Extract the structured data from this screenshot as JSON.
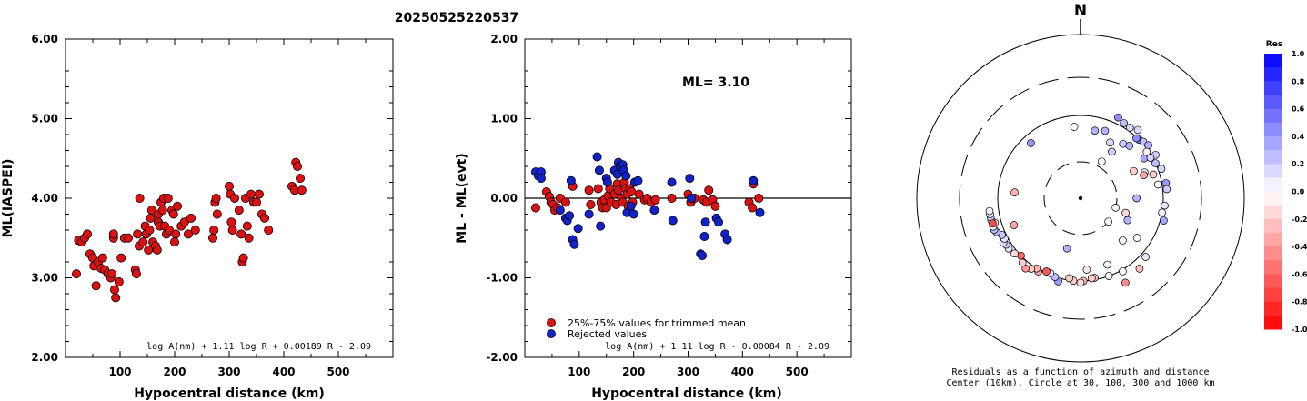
{
  "title": "20250525220537",
  "colors": {
    "accepted": "#dd1111",
    "rejected": "#1122cc",
    "axis": "#000000"
  },
  "chart_data": [
    {
      "type": "scatter",
      "ylabel": "ML(IASPEI)",
      "xlabel": "Hypocentral distance (km)",
      "xlim": [
        0,
        600
      ],
      "ylim": [
        2.0,
        6.0
      ],
      "xticks": [
        "100",
        "200",
        "300",
        "400",
        "500"
      ],
      "yticks": [
        "2.00",
        "3.00",
        "4.00",
        "5.00",
        "6.00"
      ],
      "formula": "log A(nm) + 1.11 log R + 0.00189 R - 2.09",
      "series": [
        {
          "points": [
            [
              20,
              3.05
            ],
            [
              24,
              3.47
            ],
            [
              30,
              3.45
            ],
            [
              35,
              3.5
            ],
            [
              40,
              3.55
            ],
            [
              45,
              3.3
            ],
            [
              50,
              3.25
            ],
            [
              52,
              3.15
            ],
            [
              56,
              2.9
            ],
            [
              60,
              3.2
            ],
            [
              65,
              3.12
            ],
            [
              68,
              3.25
            ],
            [
              72,
              3.1
            ],
            [
              78,
              3.05
            ],
            [
              83,
              3.0
            ],
            [
              85,
              3.05
            ],
            [
              88,
              3.5
            ],
            [
              88,
              3.55
            ],
            [
              90,
              2.85
            ],
            [
              92,
              2.75
            ],
            [
              98,
              2.95
            ],
            [
              102,
              3.25
            ],
            [
              108,
              3.5
            ],
            [
              115,
              3.5
            ],
            [
              128,
              3.1
            ],
            [
              130,
              3.05
            ],
            [
              132,
              3.55
            ],
            [
              135,
              3.4
            ],
            [
              136,
              4.0
            ],
            [
              142,
              3.45
            ],
            [
              146,
              3.65
            ],
            [
              148,
              3.55
            ],
            [
              152,
              3.35
            ],
            [
              154,
              3.6
            ],
            [
              156,
              3.75
            ],
            [
              158,
              3.85
            ],
            [
              160,
              3.45
            ],
            [
              165,
              3.4
            ],
            [
              168,
              3.35
            ],
            [
              170,
              3.7
            ],
            [
              170,
              3.8
            ],
            [
              173,
              3.65
            ],
            [
              175,
              3.95
            ],
            [
              178,
              3.85
            ],
            [
              180,
              4.0
            ],
            [
              182,
              3.65
            ],
            [
              185,
              3.55
            ],
            [
              188,
              4.0
            ],
            [
              190,
              3.6
            ],
            [
              195,
              3.85
            ],
            [
              198,
              3.8
            ],
            [
              200,
              3.45
            ],
            [
              202,
              3.55
            ],
            [
              205,
              3.9
            ],
            [
              212,
              3.65
            ],
            [
              218,
              3.7
            ],
            [
              225,
              3.55
            ],
            [
              230,
              3.75
            ],
            [
              238,
              3.6
            ],
            [
              270,
              3.5
            ],
            [
              272,
              3.6
            ],
            [
              274,
              3.95
            ],
            [
              276,
              4.0
            ],
            [
              278,
              3.8
            ],
            [
              300,
              4.15
            ],
            [
              302,
              4.05
            ],
            [
              304,
              3.7
            ],
            [
              306,
              3.6
            ],
            [
              310,
              4.0
            ],
            [
              318,
              3.85
            ],
            [
              322,
              3.55
            ],
            [
              324,
              3.2
            ],
            [
              326,
              3.25
            ],
            [
              330,
              4.0
            ],
            [
              333,
              3.65
            ],
            [
              336,
              3.5
            ],
            [
              340,
              4.05
            ],
            [
              345,
              3.95
            ],
            [
              350,
              3.95
            ],
            [
              355,
              4.05
            ],
            [
              360,
              3.8
            ],
            [
              365,
              3.75
            ],
            [
              372,
              3.6
            ],
            [
              415,
              4.15
            ],
            [
              420,
              4.1
            ],
            [
              422,
              4.45
            ],
            [
              425,
              4.4
            ],
            [
              430,
              4.25
            ],
            [
              433,
              4.1
            ]
          ]
        }
      ]
    },
    {
      "type": "scatter",
      "ylabel": "ML - ML(evt)",
      "xlabel": "Hypocentral distance (km)",
      "xlim": [
        0,
        600
      ],
      "ylim": [
        -2.0,
        2.0
      ],
      "xticks": [
        "100",
        "200",
        "300",
        "400",
        "500"
      ],
      "yticks": [
        "-2.00",
        "-1.00",
        "0.00",
        "1.00",
        "2.00"
      ],
      "annotation": "ML= 3.10",
      "formula": "log A(nm) + 1.11 log R - 0.00084 R - 2.09",
      "legend_position": "bottom-left",
      "series": [
        {
          "name": "25%-75% values for trimmed mean",
          "points": [
            [
              20,
              -0.12
            ],
            [
              40,
              0.08
            ],
            [
              45,
              0.02
            ],
            [
              48,
              -0.05
            ],
            [
              52,
              -0.08
            ],
            [
              55,
              -0.15
            ],
            [
              60,
              -0.12
            ],
            [
              65,
              0.0
            ],
            [
              75,
              -0.05
            ],
            [
              88,
              0.15
            ],
            [
              118,
              0.1
            ],
            [
              121,
              -0.08
            ],
            [
              135,
              0.12
            ],
            [
              140,
              -0.05
            ],
            [
              143,
              -0.12
            ],
            [
              146,
              -0.02
            ],
            [
              150,
              -0.12
            ],
            [
              153,
              0.03
            ],
            [
              156,
              0.12
            ],
            [
              158,
              -0.05
            ],
            [
              165,
              0.05
            ],
            [
              168,
              -0.08
            ],
            [
              170,
              0.18
            ],
            [
              172,
              0.1
            ],
            [
              178,
              0.0
            ],
            [
              180,
              -0.05
            ],
            [
              183,
              0.2
            ],
            [
              185,
              0.12
            ],
            [
              188,
              0.05
            ],
            [
              190,
              -0.1
            ],
            [
              193,
              0.12
            ],
            [
              196,
              0.08
            ],
            [
              198,
              -0.05
            ],
            [
              210,
              0.05
            ],
            [
              220,
              -0.02
            ],
            [
              225,
              0.0
            ],
            [
              232,
              -0.05
            ],
            [
              240,
              -0.02
            ],
            [
              270,
              0.0
            ],
            [
              300,
              0.05
            ],
            [
              305,
              -0.05
            ],
            [
              312,
              0.0
            ],
            [
              328,
              -0.02
            ],
            [
              334,
              -0.05
            ],
            [
              338,
              0.1
            ],
            [
              345,
              -0.02
            ],
            [
              350,
              -0.1
            ],
            [
              412,
              -0.05
            ],
            [
              418,
              -0.12
            ],
            [
              420,
              0.18
            ],
            [
              430,
              0.0
            ]
          ]
        },
        {
          "name": "Rejected values",
          "points": [
            [
              20,
              0.33
            ],
            [
              25,
              0.28
            ],
            [
              30,
              0.33
            ],
            [
              30,
              0.25
            ],
            [
              65,
              -0.15
            ],
            [
              75,
              -0.25
            ],
            [
              78,
              -0.28
            ],
            [
              82,
              -0.22
            ],
            [
              85,
              0.22
            ],
            [
              88,
              -0.52
            ],
            [
              91,
              -0.58
            ],
            [
              98,
              -0.38
            ],
            [
              118,
              -0.2
            ],
            [
              133,
              0.52
            ],
            [
              137,
              0.35
            ],
            [
              139,
              -0.35
            ],
            [
              150,
              0.25
            ],
            [
              152,
              0.2
            ],
            [
              165,
              0.35
            ],
            [
              170,
              0.3
            ],
            [
              172,
              0.45
            ],
            [
              175,
              0.4
            ],
            [
              180,
              0.42
            ],
            [
              182,
              0.35
            ],
            [
              186,
              0.28
            ],
            [
              188,
              -0.18
            ],
            [
              195,
              -0.1
            ],
            [
              200,
              -0.2
            ],
            [
              202,
              0.2
            ],
            [
              208,
              0.22
            ],
            [
              238,
              -0.15
            ],
            [
              270,
              0.2
            ],
            [
              272,
              -0.28
            ],
            [
              303,
              0.25
            ],
            [
              306,
              0.0
            ],
            [
              323,
              -0.7
            ],
            [
              326,
              -0.72
            ],
            [
              330,
              -0.48
            ],
            [
              332,
              -0.3
            ],
            [
              352,
              -0.25
            ],
            [
              356,
              -0.3
            ],
            [
              368,
              -0.45
            ],
            [
              372,
              -0.52
            ],
            [
              420,
              0.22
            ],
            [
              432,
              -0.18
            ]
          ]
        }
      ]
    },
    {
      "type": "scatter",
      "north_label": "N",
      "colorbar_title": "Res",
      "colorbar_ticks": [
        "1.0",
        "0.8",
        "0.6",
        "0.4",
        "0.2",
        "0.0",
        "-0.2",
        "-0.4",
        "-0.6",
        "-0.8",
        "-1.0"
      ],
      "caption": [
        "Residuals as a function of azimuth and distance",
        "Center (10km), Circle at 30, 100, 300 and 1000 km"
      ],
      "rings_km": [
        10,
        30,
        100,
        300,
        1000
      ],
      "points": [
        [
          35,
          110,
          0.15
        ],
        [
          40,
          120,
          0.15
        ],
        [
          45,
          100,
          0.4
        ],
        [
          48,
          105,
          0.25
        ],
        [
          52,
          110,
          0.3
        ],
        [
          60,
          112,
          0.2
        ],
        [
          25,
          120,
          0.45
        ],
        [
          30,
          112,
          0.25
        ],
        [
          65,
          100,
          0.25
        ],
        [
          70,
          110,
          0.15
        ],
        [
          80,
          112,
          0.4
        ],
        [
          84,
          112,
          0.2
        ],
        [
          95,
          105,
          0.1
        ],
        [
          100,
          100,
          0.05
        ],
        [
          105,
          110,
          0.35
        ],
        [
          130,
          30,
          0.05
        ],
        [
          132,
          115,
          0.1
        ],
        [
          140,
          130,
          -0.25
        ],
        [
          152,
          145,
          -0.45
        ],
        [
          158,
          75,
          0.05
        ],
        [
          170,
          95,
          -0.25
        ],
        [
          172,
          95,
          -0.2
        ],
        [
          178,
          100,
          -0.3
        ],
        [
          180,
          105,
          -0.15
        ],
        [
          185,
          100,
          -0.2
        ],
        [
          188,
          95,
          -0.2
        ],
        [
          195,
          110,
          0.4
        ],
        [
          195,
          45,
          0.3
        ],
        [
          198,
          100,
          0.25
        ],
        [
          202,
          95,
          0.1
        ],
        [
          205,
          95,
          -0.65
        ],
        [
          210,
          105,
          -0.35
        ],
        [
          212,
          100,
          -0.3
        ],
        [
          215,
          110,
          -0.2
        ],
        [
          218,
          120,
          -0.4
        ],
        [
          222,
          112,
          -0.2
        ],
        [
          226,
          100,
          -0.6
        ],
        [
          230,
          110,
          -0.15
        ],
        [
          235,
          115,
          0.1
        ],
        [
          238,
          115,
          0.2
        ],
        [
          240,
          120,
          0.15
        ],
        [
          242,
          110,
          0.1
        ],
        [
          245,
          112,
          0.2
        ],
        [
          248,
          125,
          0.3
        ],
        [
          250,
          130,
          0.25
        ],
        [
          252,
          130,
          0.05
        ],
        [
          254,
          120,
          0.05
        ],
        [
          256,
          130,
          0.05
        ],
        [
          258,
          130,
          0.2
        ],
        [
          260,
          130,
          -0.05
        ],
        [
          262,
          130,
          0.05
        ],
        [
          248,
          75,
          -0.35
        ],
        [
          254,
          128,
          -0.7
        ],
        [
          275,
          65,
          -0.3
        ],
        [
          318,
          80,
          0.4
        ],
        [
          355,
          75,
          0.0
        ],
        [
          12,
          70,
          0.3
        ],
        [
          20,
          75,
          0.3
        ],
        [
          28,
          60,
          0.15
        ],
        [
          34,
          50,
          0.2
        ],
        [
          38,
          70,
          0.2
        ],
        [
          43,
          75,
          0.3
        ],
        [
          30,
          35,
          0.0
        ],
        [
          43,
          98,
          0.45
        ],
        [
          55,
          95,
          -0.05
        ],
        [
          58,
          82,
          0.35
        ],
        [
          60,
          95,
          0.15
        ],
        [
          63,
          55,
          -0.2
        ],
        [
          68,
          70,
          0.1
        ],
        [
          70,
          67,
          -0.35
        ],
        [
          72,
          85,
          -0.2
        ],
        [
          80,
          90,
          0.0
        ],
        [
          90,
          50,
          0.3
        ],
        [
          105,
          30,
          -0.05
        ],
        [
          108,
          40,
          -0.15
        ],
        [
          115,
          45,
          0.3
        ],
        [
          125,
          70,
          0.0
        ],
        [
          135,
          55,
          -0.05
        ],
        [
          150,
          105,
          0.0
        ],
        [
          160,
          100,
          -0.05
        ],
        [
          175,
          75,
          -0.1
        ]
      ]
    }
  ]
}
